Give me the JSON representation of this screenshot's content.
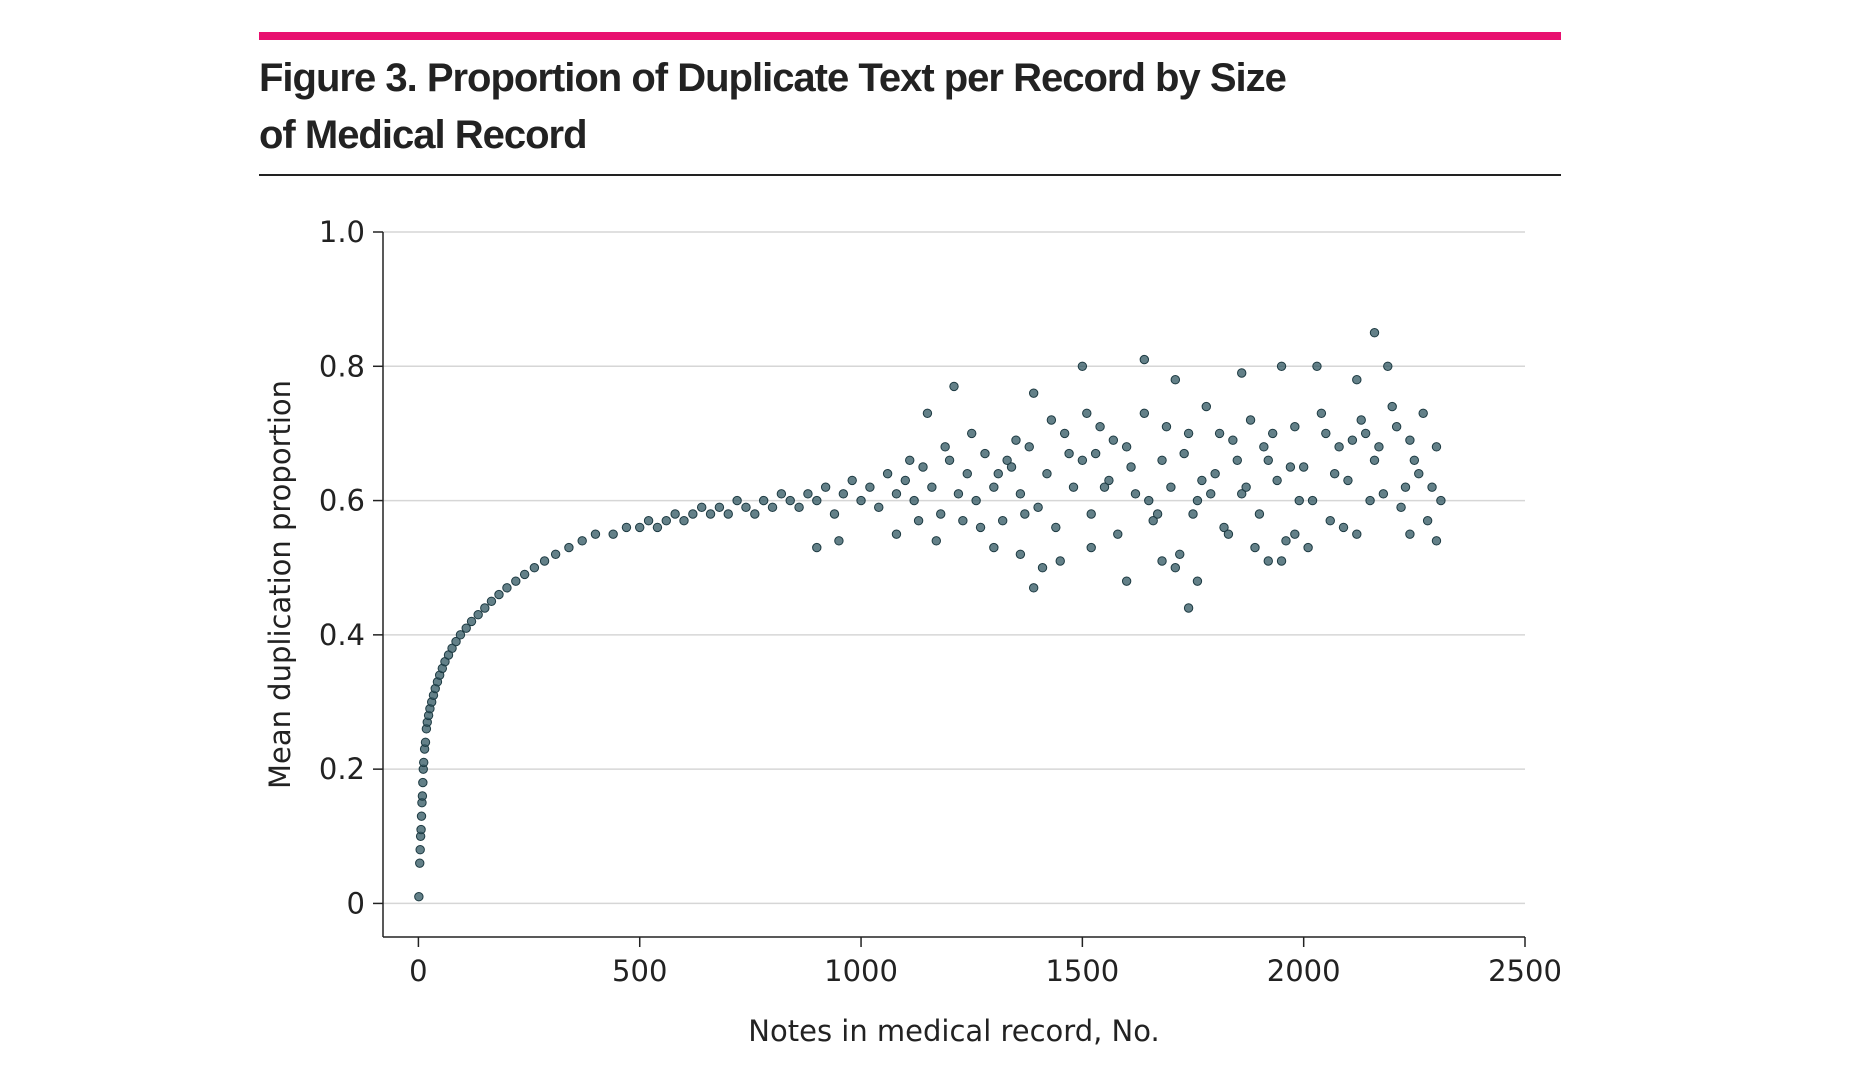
{
  "figure": {
    "title_line1": "Figure 3. Proportion of Duplicate Text per Record by Size",
    "title_line2": "of Medical Record",
    "accent_color": "#e8106f"
  },
  "chart_data": {
    "type": "scatter",
    "xlabel": "Notes in medical record, No.",
    "ylabel": "Mean duplication proportion",
    "xlim": [
      -80,
      2500
    ],
    "ylim": [
      -0.05,
      1.0
    ],
    "xticks": [
      0,
      500,
      1000,
      1500,
      2000,
      2500
    ],
    "xtick_labels": [
      "0",
      "500",
      "1000",
      "1500",
      "2000",
      "2500"
    ],
    "yticks": [
      0,
      0.2,
      0.4,
      0.6,
      0.8,
      1.0
    ],
    "ytick_labels": [
      "0",
      "0.2",
      "0.4",
      "0.6",
      "0.8",
      "1.0"
    ],
    "grid": "horizontal",
    "point_color": "#2f5560",
    "series": [
      {
        "points": [
          [
            1,
            0.01
          ],
          [
            3,
            0.06
          ],
          [
            4,
            0.08
          ],
          [
            5,
            0.1
          ],
          [
            6,
            0.11
          ],
          [
            7,
            0.13
          ],
          [
            8,
            0.15
          ],
          [
            9,
            0.16
          ],
          [
            10,
            0.18
          ],
          [
            11,
            0.2
          ],
          [
            12,
            0.21
          ],
          [
            14,
            0.23
          ],
          [
            16,
            0.24
          ],
          [
            18,
            0.26
          ],
          [
            20,
            0.27
          ],
          [
            23,
            0.28
          ],
          [
            26,
            0.29
          ],
          [
            30,
            0.3
          ],
          [
            34,
            0.31
          ],
          [
            38,
            0.32
          ],
          [
            43,
            0.33
          ],
          [
            48,
            0.34
          ],
          [
            54,
            0.35
          ],
          [
            60,
            0.36
          ],
          [
            68,
            0.37
          ],
          [
            76,
            0.38
          ],
          [
            85,
            0.39
          ],
          [
            95,
            0.4
          ],
          [
            108,
            0.41
          ],
          [
            120,
            0.42
          ],
          [
            135,
            0.43
          ],
          [
            150,
            0.44
          ],
          [
            165,
            0.45
          ],
          [
            182,
            0.46
          ],
          [
            200,
            0.47
          ],
          [
            220,
            0.48
          ],
          [
            240,
            0.49
          ],
          [
            262,
            0.5
          ],
          [
            285,
            0.51
          ],
          [
            310,
            0.52
          ],
          [
            340,
            0.53
          ],
          [
            370,
            0.54
          ],
          [
            400,
            0.55
          ],
          [
            440,
            0.55
          ],
          [
            470,
            0.56
          ],
          [
            500,
            0.56
          ],
          [
            520,
            0.57
          ],
          [
            540,
            0.56
          ],
          [
            560,
            0.57
          ],
          [
            580,
            0.58
          ],
          [
            600,
            0.57
          ],
          [
            620,
            0.58
          ],
          [
            640,
            0.59
          ],
          [
            660,
            0.58
          ],
          [
            680,
            0.59
          ],
          [
            700,
            0.58
          ],
          [
            720,
            0.6
          ],
          [
            740,
            0.59
          ],
          [
            760,
            0.58
          ],
          [
            780,
            0.6
          ],
          [
            800,
            0.59
          ],
          [
            820,
            0.61
          ],
          [
            840,
            0.6
          ],
          [
            860,
            0.59
          ],
          [
            880,
            0.61
          ],
          [
            900,
            0.6
          ],
          [
            920,
            0.62
          ],
          [
            940,
            0.58
          ],
          [
            960,
            0.61
          ],
          [
            980,
            0.63
          ],
          [
            1000,
            0.6
          ],
          [
            1020,
            0.62
          ],
          [
            1040,
            0.59
          ],
          [
            1060,
            0.64
          ],
          [
            1080,
            0.61
          ],
          [
            1100,
            0.63
          ],
          [
            1120,
            0.6
          ],
          [
            1140,
            0.65
          ],
          [
            1160,
            0.62
          ],
          [
            1180,
            0.58
          ],
          [
            1200,
            0.66
          ],
          [
            1220,
            0.61
          ],
          [
            1240,
            0.64
          ],
          [
            1260,
            0.6
          ],
          [
            1280,
            0.67
          ],
          [
            1300,
            0.62
          ],
          [
            1320,
            0.57
          ],
          [
            1340,
            0.65
          ],
          [
            1360,
            0.61
          ],
          [
            1380,
            0.68
          ],
          [
            1400,
            0.59
          ],
          [
            1420,
            0.64
          ],
          [
            1440,
            0.56
          ],
          [
            1460,
            0.7
          ],
          [
            1480,
            0.62
          ],
          [
            1500,
            0.66
          ],
          [
            1520,
            0.58
          ],
          [
            1540,
            0.71
          ],
          [
            1560,
            0.63
          ],
          [
            1580,
            0.55
          ],
          [
            1600,
            0.68
          ],
          [
            1620,
            0.61
          ],
          [
            1640,
            0.73
          ],
          [
            1660,
            0.57
          ],
          [
            1680,
            0.66
          ],
          [
            1700,
            0.62
          ],
          [
            1720,
            0.52
          ],
          [
            1740,
            0.7
          ],
          [
            1760,
            0.6
          ],
          [
            1780,
            0.74
          ],
          [
            1800,
            0.64
          ],
          [
            1820,
            0.56
          ],
          [
            1840,
            0.69
          ],
          [
            1860,
            0.61
          ],
          [
            1880,
            0.72
          ],
          [
            1900,
            0.58
          ],
          [
            1920,
            0.66
          ],
          [
            1940,
            0.63
          ],
          [
            1960,
            0.54
          ],
          [
            1980,
            0.71
          ],
          [
            2000,
            0.65
          ],
          [
            2020,
            0.6
          ],
          [
            2040,
            0.73
          ],
          [
            2060,
            0.57
          ],
          [
            2080,
            0.68
          ],
          [
            2100,
            0.63
          ],
          [
            2120,
            0.55
          ],
          [
            2140,
            0.7
          ],
          [
            2160,
            0.66
          ],
          [
            2180,
            0.61
          ],
          [
            2200,
            0.74
          ],
          [
            2220,
            0.59
          ],
          [
            2240,
            0.69
          ],
          [
            2260,
            0.64
          ],
          [
            2280,
            0.57
          ],
          [
            2300,
            0.68
          ],
          [
            2310,
            0.6
          ],
          [
            1210,
            0.77
          ],
          [
            1150,
            0.73
          ],
          [
            1390,
            0.76
          ],
          [
            1500,
            0.8
          ],
          [
            1640,
            0.81
          ],
          [
            1710,
            0.78
          ],
          [
            1860,
            0.79
          ],
          [
            1950,
            0.8
          ],
          [
            2030,
            0.8
          ],
          [
            2160,
            0.85
          ],
          [
            2190,
            0.8
          ],
          [
            2120,
            0.78
          ],
          [
            1390,
            0.47
          ],
          [
            1740,
            0.44
          ],
          [
            1710,
            0.5
          ],
          [
            1600,
            0.48
          ],
          [
            1760,
            0.48
          ],
          [
            2300,
            0.54
          ],
          [
            1520,
            0.53
          ],
          [
            1950,
            0.51
          ],
          [
            1450,
            0.51
          ],
          [
            900,
            0.53
          ],
          [
            1300,
            0.53
          ],
          [
            1170,
            0.54
          ],
          [
            1410,
            0.5
          ],
          [
            1360,
            0.52
          ],
          [
            2010,
            0.53
          ],
          [
            2240,
            0.55
          ],
          [
            950,
            0.54
          ],
          [
            1080,
            0.55
          ],
          [
            1680,
            0.51
          ],
          [
            1830,
            0.55
          ],
          [
            2090,
            0.56
          ],
          [
            1980,
            0.55
          ],
          [
            1920,
            0.51
          ],
          [
            1890,
            0.53
          ],
          [
            1550,
            0.62
          ],
          [
            1570,
            0.69
          ],
          [
            1610,
            0.65
          ],
          [
            1690,
            0.71
          ],
          [
            1730,
            0.67
          ],
          [
            1770,
            0.63
          ],
          [
            1810,
            0.7
          ],
          [
            1850,
            0.66
          ],
          [
            1870,
            0.62
          ],
          [
            1910,
            0.68
          ],
          [
            1930,
            0.7
          ],
          [
            1970,
            0.65
          ],
          [
            2050,
            0.7
          ],
          [
            2070,
            0.64
          ],
          [
            2110,
            0.69
          ],
          [
            2130,
            0.72
          ],
          [
            2170,
            0.68
          ],
          [
            2210,
            0.71
          ],
          [
            2250,
            0.66
          ],
          [
            2270,
            0.73
          ],
          [
            2290,
            0.62
          ],
          [
            1110,
            0.66
          ],
          [
            1190,
            0.68
          ],
          [
            1250,
            0.7
          ],
          [
            1330,
            0.66
          ],
          [
            1350,
            0.69
          ],
          [
            1430,
            0.72
          ],
          [
            1470,
            0.67
          ],
          [
            1510,
            0.73
          ],
          [
            1530,
            0.67
          ],
          [
            1650,
            0.6
          ],
          [
            1670,
            0.58
          ],
          [
            1750,
            0.58
          ],
          [
            1790,
            0.61
          ],
          [
            1990,
            0.6
          ],
          [
            2150,
            0.6
          ],
          [
            2230,
            0.62
          ],
          [
            1130,
            0.57
          ],
          [
            1230,
            0.57
          ],
          [
            1270,
            0.56
          ],
          [
            1310,
            0.64
          ],
          [
            1370,
            0.58
          ]
        ]
      }
    ]
  }
}
